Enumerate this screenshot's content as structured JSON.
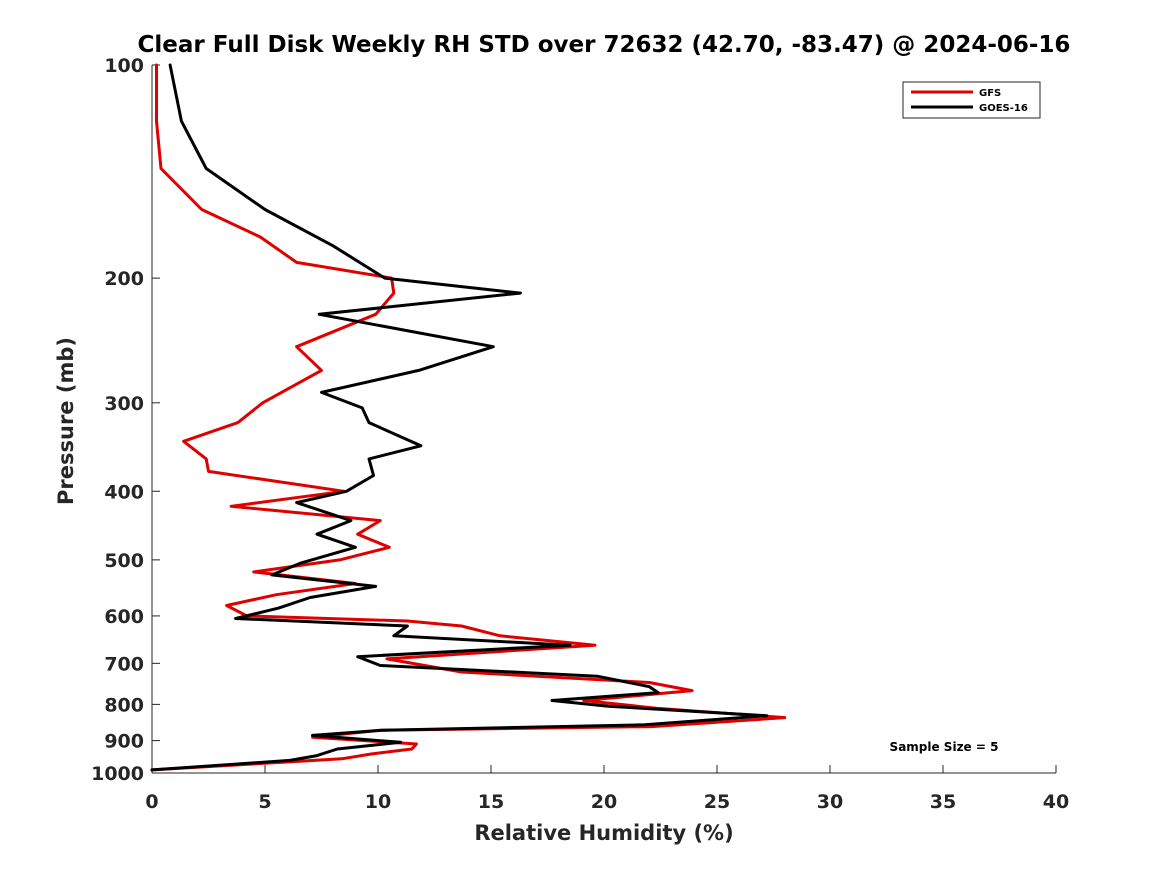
{
  "chart_data": {
    "type": "line",
    "title": "Clear Full Disk Weekly RH STD over 72632 (42.70, -83.47) @ 2024-06-16",
    "xlabel": "Relative Humidity (%)",
    "ylabel": "Pressure (mb)",
    "xlim": [
      0,
      40
    ],
    "ylim": [
      100,
      1000
    ],
    "y_scale": "log",
    "y_reversed": true,
    "x_ticks": [
      0,
      5,
      10,
      15,
      20,
      25,
      30,
      35,
      40
    ],
    "y_ticks": [
      100,
      200,
      300,
      400,
      500,
      600,
      700,
      800,
      900,
      1000
    ],
    "grid": false,
    "legend_position": "top-right",
    "annotation": "Sample Size = 5",
    "series": [
      {
        "name": "GFS",
        "color": "#e00000",
        "x": [
          0.2,
          0.2,
          0.4,
          2.2,
          4.8,
          6.4,
          10.6,
          10.7,
          9.9,
          6.4,
          7.5,
          4.9,
          3.8,
          1.4,
          2.4,
          2.5,
          8.5,
          3.5,
          10.1,
          9.1,
          10.5,
          8.3,
          4.5,
          9.0,
          5.5,
          3.3,
          4.2,
          11.3,
          13.7,
          15.4,
          19.6,
          10.4,
          13.7,
          22.0,
          23.9,
          19.1,
          22.3,
          28.0,
          22.1,
          10.1,
          7.1,
          11.7,
          11.5,
          9.7,
          8.4,
          0.0
        ],
        "y": [
          100,
          120,
          140,
          160,
          175,
          190,
          200,
          210,
          225,
          250,
          270,
          300,
          320,
          340,
          360,
          375,
          400,
          420,
          440,
          460,
          480,
          500,
          520,
          540,
          560,
          580,
          600,
          610,
          620,
          640,
          660,
          690,
          720,
          745,
          765,
          790,
          810,
          835,
          860,
          870,
          890,
          910,
          925,
          940,
          955,
          990
        ]
      },
      {
        "name": "GOES-16",
        "color": "#000000",
        "x": [
          0.8,
          1.3,
          2.4,
          5.0,
          8.0,
          10.3,
          16.3,
          7.4,
          15.1,
          11.8,
          7.5,
          9.3,
          9.6,
          11.9,
          9.6,
          9.8,
          8.6,
          6.4,
          8.8,
          7.3,
          9.0,
          6.6,
          5.3,
          9.9,
          7.0,
          5.6,
          3.7,
          11.3,
          10.7,
          18.5,
          9.1,
          10.1,
          19.7,
          22.0,
          22.4,
          17.7,
          20.2,
          27.2,
          21.8,
          10.2,
          7.1,
          11.0,
          8.2,
          7.3,
          6.1,
          0.0
        ],
        "y": [
          100,
          120,
          140,
          160,
          180,
          200,
          210,
          225,
          250,
          270,
          290,
          305,
          320,
          345,
          360,
          380,
          400,
          415,
          440,
          460,
          480,
          505,
          525,
          545,
          565,
          585,
          605,
          620,
          640,
          660,
          685,
          705,
          730,
          755,
          770,
          790,
          805,
          830,
          855,
          870,
          885,
          905,
          925,
          945,
          960,
          990
        ]
      }
    ]
  }
}
